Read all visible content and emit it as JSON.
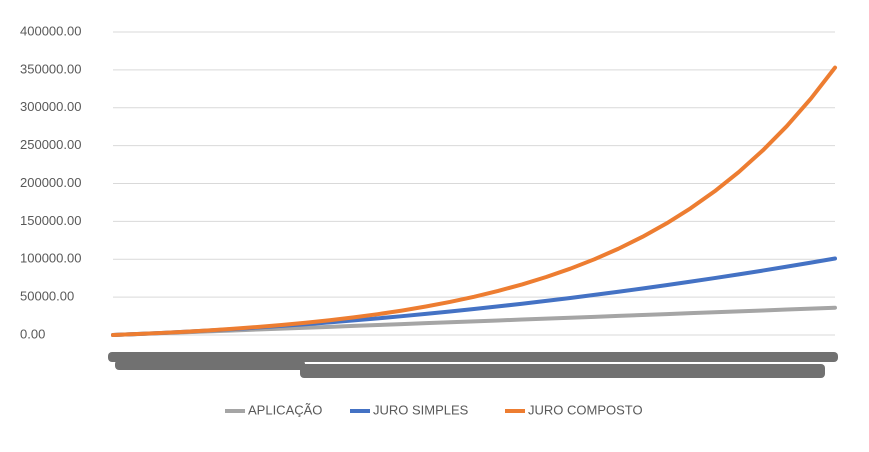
{
  "chart_data": {
    "type": "line",
    "categories": [
      null,
      null,
      null,
      null,
      null,
      null,
      null,
      null,
      null,
      null,
      null,
      null,
      null,
      null,
      null,
      null,
      null,
      null,
      null,
      null,
      null,
      null,
      null,
      null,
      null,
      null,
      null,
      null,
      null,
      null,
      null
    ],
    "series": [
      {
        "name": "APLICAÇÃO",
        "color": "#a5a5a5",
        "values": [
          0,
          1200,
          2400,
          3600,
          4800,
          6000,
          7200,
          8400,
          9600,
          10800,
          12000,
          13200,
          14400,
          15600,
          16800,
          18000,
          19200,
          20400,
          21600,
          22800,
          24000,
          25200,
          26400,
          27600,
          28800,
          30000,
          31200,
          32400,
          33600,
          34800,
          36000
        ]
      },
      {
        "name": "JURO SIMPLES",
        "color": "#4472c4",
        "values": [
          0,
          1278,
          2700,
          4266,
          5976,
          7830,
          9828,
          11970,
          14256,
          16686,
          19260,
          21978,
          24840,
          27846,
          30996,
          34290,
          37728,
          41310,
          45036,
          48906,
          52920,
          57078,
          61380,
          65826,
          70416,
          75150,
          80028,
          85050,
          90216,
          95526,
          100980
        ]
      },
      {
        "name": "JURO COMPOSTO",
        "color": "#ed7d31",
        "values": [
          0,
          1281,
          2724,
          4351,
          6183,
          8249,
          10576,
          13198,
          16153,
          19482,
          23234,
          27461,
          32225,
          37593,
          43642,
          50458,
          58138,
          66792,
          76544,
          87533,
          99915,
          113867,
          129590,
          147306,
          167269,
          189764,
          215111,
          243674,
          275858,
          312125,
          352991
        ]
      }
    ],
    "ylim": [
      0,
      400000
    ],
    "yticks": [
      {
        "value": 0,
        "label": "0.00"
      },
      {
        "value": 50000,
        "label": "50000.00"
      },
      {
        "value": 100000,
        "label": "100000.00"
      },
      {
        "value": 150000,
        "label": "150000.00"
      },
      {
        "value": 200000,
        "label": "200000.00"
      },
      {
        "value": 250000,
        "label": "250000.00"
      },
      {
        "value": 300000,
        "label": "300000.00"
      },
      {
        "value": 350000,
        "label": "350000.00"
      },
      {
        "value": 400000,
        "label": "400000.00"
      }
    ],
    "grid": true,
    "legend": "bottom"
  }
}
